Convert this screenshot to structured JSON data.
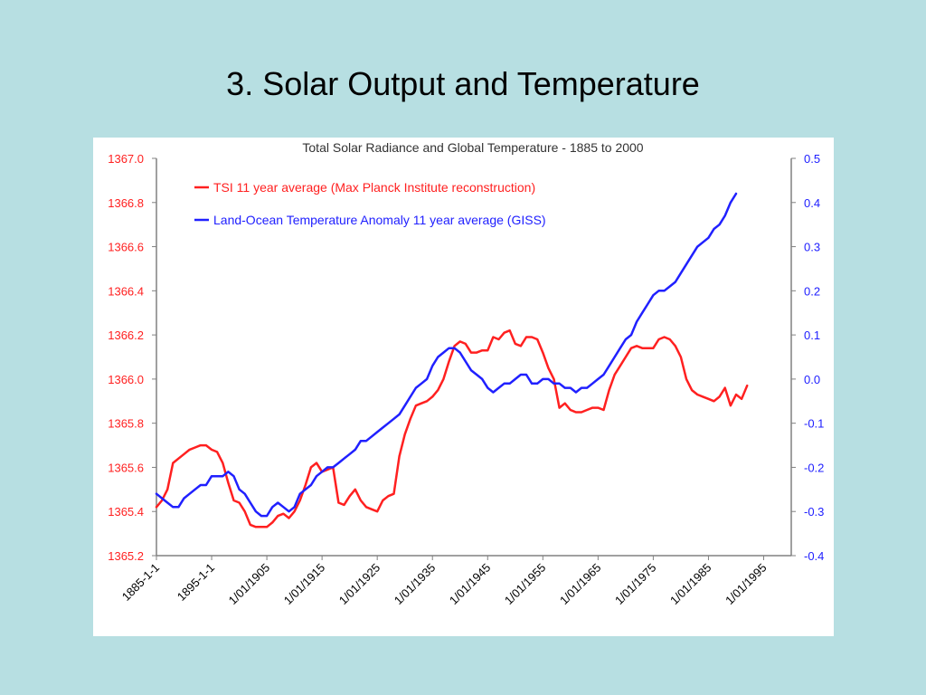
{
  "slide": {
    "title": "3.  Solar Output and Temperature"
  },
  "colors": {
    "background": "#b7dfe2",
    "tsi": "#ff2020",
    "temp": "#2020ff",
    "axis": "#808080"
  },
  "chart_data": {
    "type": "line",
    "title": "Total Solar Radiance and Global Temperature - 1885 to 2000",
    "grid": false,
    "legend_position": "top-left",
    "x": {
      "range": [
        1885,
        2000
      ],
      "tick_values": [
        1885,
        1895,
        1905,
        1915,
        1925,
        1935,
        1945,
        1955,
        1965,
        1975,
        1985,
        1995
      ],
      "tick_labels": [
        "1885-1-1",
        "1895-1-1",
        "1/01/1905",
        "1/01/1915",
        "1/01/1925",
        "1/01/1935",
        "1/01/1945",
        "1/01/1955",
        "1/01/1965",
        "1/01/1975",
        "1/01/1985",
        "1/01/1995"
      ]
    },
    "y_left": {
      "range": [
        1365.2,
        1367.0
      ],
      "tick_values": [
        1365.2,
        1365.4,
        1365.6,
        1365.8,
        1366.0,
        1366.2,
        1366.4,
        1366.6,
        1366.8,
        1367.0
      ],
      "tick_labels": [
        "1365.2",
        "1365.4",
        "1365.6",
        "1365.8",
        "1366.0",
        "1366.2",
        "1366.4",
        "1366.6",
        "1366.8",
        "1367.0"
      ]
    },
    "y_right": {
      "range": [
        -0.4,
        0.5
      ],
      "tick_values": [
        -0.4,
        -0.3,
        -0.2,
        -0.1,
        0.0,
        0.1,
        0.2,
        0.3,
        0.4,
        0.5
      ],
      "tick_labels": [
        "-0.4",
        "-0.3",
        "-0.2",
        "-0.1",
        "0.0",
        "0.1",
        "0.2",
        "0.3",
        "0.4",
        "0.5"
      ]
    },
    "series": [
      {
        "name": "TSI 11 year average (Max Planck Institute reconstruction)",
        "axis": "left",
        "color": "#ff2020",
        "points": [
          [
            1885,
            1365.42
          ],
          [
            1886,
            1365.45
          ],
          [
            1887,
            1365.5
          ],
          [
            1888,
            1365.62
          ],
          [
            1889,
            1365.64
          ],
          [
            1890,
            1365.66
          ],
          [
            1891,
            1365.68
          ],
          [
            1892,
            1365.69
          ],
          [
            1893,
            1365.7
          ],
          [
            1894,
            1365.7
          ],
          [
            1895,
            1365.68
          ],
          [
            1896,
            1365.67
          ],
          [
            1897,
            1365.62
          ],
          [
            1898,
            1365.53
          ],
          [
            1899,
            1365.45
          ],
          [
            1900,
            1365.44
          ],
          [
            1901,
            1365.4
          ],
          [
            1902,
            1365.34
          ],
          [
            1903,
            1365.33
          ],
          [
            1904,
            1365.33
          ],
          [
            1905,
            1365.33
          ],
          [
            1906,
            1365.35
          ],
          [
            1907,
            1365.38
          ],
          [
            1908,
            1365.39
          ],
          [
            1909,
            1365.37
          ],
          [
            1910,
            1365.4
          ],
          [
            1911,
            1365.45
          ],
          [
            1912,
            1365.52
          ],
          [
            1913,
            1365.6
          ],
          [
            1914,
            1365.62
          ],
          [
            1915,
            1365.58
          ],
          [
            1916,
            1365.59
          ],
          [
            1917,
            1365.6
          ],
          [
            1918,
            1365.44
          ],
          [
            1919,
            1365.43
          ],
          [
            1920,
            1365.47
          ],
          [
            1921,
            1365.5
          ],
          [
            1922,
            1365.45
          ],
          [
            1923,
            1365.42
          ],
          [
            1924,
            1365.41
          ],
          [
            1925,
            1365.4
          ],
          [
            1926,
            1365.45
          ],
          [
            1927,
            1365.47
          ],
          [
            1928,
            1365.48
          ],
          [
            1929,
            1365.65
          ],
          [
            1930,
            1365.75
          ],
          [
            1931,
            1365.82
          ],
          [
            1932,
            1365.88
          ],
          [
            1933,
            1365.89
          ],
          [
            1934,
            1365.9
          ],
          [
            1935,
            1365.92
          ],
          [
            1936,
            1365.95
          ],
          [
            1937,
            1366.0
          ],
          [
            1938,
            1366.08
          ],
          [
            1939,
            1366.15
          ],
          [
            1940,
            1366.17
          ],
          [
            1941,
            1366.16
          ],
          [
            1942,
            1366.12
          ],
          [
            1943,
            1366.12
          ],
          [
            1944,
            1366.13
          ],
          [
            1945,
            1366.13
          ],
          [
            1946,
            1366.19
          ],
          [
            1947,
            1366.18
          ],
          [
            1948,
            1366.21
          ],
          [
            1949,
            1366.22
          ],
          [
            1950,
            1366.16
          ],
          [
            1951,
            1366.15
          ],
          [
            1952,
            1366.19
          ],
          [
            1953,
            1366.19
          ],
          [
            1954,
            1366.18
          ],
          [
            1955,
            1366.12
          ],
          [
            1956,
            1366.05
          ],
          [
            1957,
            1366.0
          ],
          [
            1958,
            1365.87
          ],
          [
            1959,
            1365.89
          ],
          [
            1960,
            1365.86
          ],
          [
            1961,
            1365.85
          ],
          [
            1962,
            1365.85
          ],
          [
            1963,
            1365.86
          ],
          [
            1964,
            1365.87
          ],
          [
            1965,
            1365.87
          ],
          [
            1966,
            1365.86
          ],
          [
            1967,
            1365.95
          ],
          [
            1968,
            1366.02
          ],
          [
            1969,
            1366.06
          ],
          [
            1970,
            1366.1
          ],
          [
            1971,
            1366.14
          ],
          [
            1972,
            1366.15
          ],
          [
            1973,
            1366.14
          ],
          [
            1974,
            1366.14
          ],
          [
            1975,
            1366.14
          ],
          [
            1976,
            1366.18
          ],
          [
            1977,
            1366.19
          ],
          [
            1978,
            1366.18
          ],
          [
            1979,
            1366.15
          ],
          [
            1980,
            1366.1
          ],
          [
            1981,
            1366.0
          ],
          [
            1982,
            1365.95
          ],
          [
            1983,
            1365.93
          ],
          [
            1984,
            1365.92
          ],
          [
            1985,
            1365.91
          ],
          [
            1986,
            1365.9
          ],
          [
            1987,
            1365.92
          ],
          [
            1988,
            1365.96
          ],
          [
            1989,
            1365.88
          ],
          [
            1990,
            1365.93
          ],
          [
            1991,
            1365.91
          ],
          [
            1992,
            1365.97
          ]
        ]
      },
      {
        "name": "Land-Ocean Temperature Anomaly 11 year average (GISS)",
        "axis": "right",
        "color": "#2020ff",
        "points": [
          [
            1885,
            -0.26
          ],
          [
            1886,
            -0.27
          ],
          [
            1887,
            -0.28
          ],
          [
            1888,
            -0.29
          ],
          [
            1889,
            -0.29
          ],
          [
            1890,
            -0.27
          ],
          [
            1891,
            -0.26
          ],
          [
            1892,
            -0.25
          ],
          [
            1893,
            -0.24
          ],
          [
            1894,
            -0.24
          ],
          [
            1895,
            -0.22
          ],
          [
            1896,
            -0.22
          ],
          [
            1897,
            -0.22
          ],
          [
            1898,
            -0.21
          ],
          [
            1899,
            -0.22
          ],
          [
            1900,
            -0.25
          ],
          [
            1901,
            -0.26
          ],
          [
            1902,
            -0.28
          ],
          [
            1903,
            -0.3
          ],
          [
            1904,
            -0.31
          ],
          [
            1905,
            -0.31
          ],
          [
            1906,
            -0.29
          ],
          [
            1907,
            -0.28
          ],
          [
            1908,
            -0.29
          ],
          [
            1909,
            -0.3
          ],
          [
            1910,
            -0.29
          ],
          [
            1911,
            -0.26
          ],
          [
            1912,
            -0.25
          ],
          [
            1913,
            -0.24
          ],
          [
            1914,
            -0.22
          ],
          [
            1915,
            -0.21
          ],
          [
            1916,
            -0.2
          ],
          [
            1917,
            -0.2
          ],
          [
            1918,
            -0.19
          ],
          [
            1919,
            -0.18
          ],
          [
            1920,
            -0.17
          ],
          [
            1921,
            -0.16
          ],
          [
            1922,
            -0.14
          ],
          [
            1923,
            -0.14
          ],
          [
            1924,
            -0.13
          ],
          [
            1925,
            -0.12
          ],
          [
            1926,
            -0.11
          ],
          [
            1927,
            -0.1
          ],
          [
            1928,
            -0.09
          ],
          [
            1929,
            -0.08
          ],
          [
            1930,
            -0.06
          ],
          [
            1931,
            -0.04
          ],
          [
            1932,
            -0.02
          ],
          [
            1933,
            -0.01
          ],
          [
            1934,
            0.0
          ],
          [
            1935,
            0.03
          ],
          [
            1936,
            0.05
          ],
          [
            1937,
            0.06
          ],
          [
            1938,
            0.07
          ],
          [
            1939,
            0.07
          ],
          [
            1940,
            0.06
          ],
          [
            1941,
            0.04
          ],
          [
            1942,
            0.02
          ],
          [
            1943,
            0.01
          ],
          [
            1944,
            0.0
          ],
          [
            1945,
            -0.02
          ],
          [
            1946,
            -0.03
          ],
          [
            1947,
            -0.02
          ],
          [
            1948,
            -0.01
          ],
          [
            1949,
            -0.01
          ],
          [
            1950,
            0.0
          ],
          [
            1951,
            0.01
          ],
          [
            1952,
            0.01
          ],
          [
            1953,
            -0.01
          ],
          [
            1954,
            -0.01
          ],
          [
            1955,
            0.0
          ],
          [
            1956,
            0.0
          ],
          [
            1957,
            -0.01
          ],
          [
            1958,
            -0.01
          ],
          [
            1959,
            -0.02
          ],
          [
            1960,
            -0.02
          ],
          [
            1961,
            -0.03
          ],
          [
            1962,
            -0.02
          ],
          [
            1963,
            -0.02
          ],
          [
            1964,
            -0.01
          ],
          [
            1965,
            0.0
          ],
          [
            1966,
            0.01
          ],
          [
            1967,
            0.03
          ],
          [
            1968,
            0.05
          ],
          [
            1969,
            0.07
          ],
          [
            1970,
            0.09
          ],
          [
            1971,
            0.1
          ],
          [
            1972,
            0.13
          ],
          [
            1973,
            0.15
          ],
          [
            1974,
            0.17
          ],
          [
            1975,
            0.19
          ],
          [
            1976,
            0.2
          ],
          [
            1977,
            0.2
          ],
          [
            1978,
            0.21
          ],
          [
            1979,
            0.22
          ],
          [
            1980,
            0.24
          ],
          [
            1981,
            0.26
          ],
          [
            1982,
            0.28
          ],
          [
            1983,
            0.3
          ],
          [
            1984,
            0.31
          ],
          [
            1985,
            0.32
          ],
          [
            1986,
            0.34
          ],
          [
            1987,
            0.35
          ],
          [
            1988,
            0.37
          ],
          [
            1989,
            0.4
          ],
          [
            1990,
            0.42
          ]
        ]
      }
    ]
  }
}
